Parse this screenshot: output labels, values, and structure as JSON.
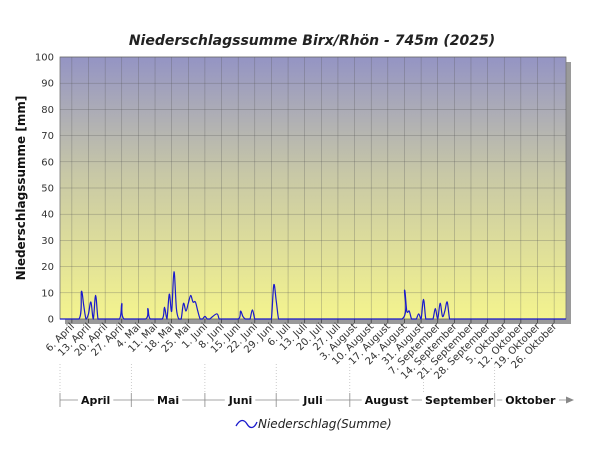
{
  "chart_data": {
    "type": "line",
    "title": "Niederschlagssumme Birx/Rhön - 745m (2025)",
    "ylabel": "Niederschlagssumme [mm]",
    "xlabel": "",
    "ylim": [
      0,
      100
    ],
    "yticks": [
      "0",
      "10",
      "20",
      "30",
      "40",
      "50",
      "60",
      "70",
      "80",
      "90",
      "100"
    ],
    "grid": true,
    "legend_position": "bottom",
    "x_start": "2025-04-01",
    "x_end": "2025-10-31",
    "x_tick_dates": [
      "2025-04-06",
      "2025-04-13",
      "2025-04-20",
      "2025-04-27",
      "2025-05-04",
      "2025-05-11",
      "2025-05-18",
      "2025-05-25",
      "2025-06-01",
      "2025-06-08",
      "2025-06-15",
      "2025-06-22",
      "2025-06-29",
      "2025-07-06",
      "2025-07-13",
      "2025-07-20",
      "2025-07-27",
      "2025-08-03",
      "2025-08-10",
      "2025-08-17",
      "2025-08-24",
      "2025-08-31",
      "2025-09-07",
      "2025-09-14",
      "2025-09-21",
      "2025-09-28",
      "2025-10-05",
      "2025-10-12",
      "2025-10-19",
      "2025-10-26"
    ],
    "x_tick_labels": [
      "6. April",
      "13. April",
      "20. April",
      "27. April",
      "4. Mai",
      "11. Mai",
      "18. Mai",
      "25. Mai",
      "1. Juni",
      "8. Juni",
      "15. Juni",
      "22. Juni",
      "29. Juni",
      "6. Juli",
      "13. Juli",
      "20. Juli",
      "27. Juli",
      "3. August",
      "10. August",
      "17. August",
      "24. August",
      "31. August",
      "7. September",
      "14. September",
      "21. September",
      "28. September",
      "5. Oktober",
      "12. Oktober",
      "19. Oktober",
      "26. Oktober"
    ],
    "months": [
      {
        "label": "April",
        "start": "2025-04-01",
        "end": "2025-04-30"
      },
      {
        "label": "Mai",
        "start": "2025-05-01",
        "end": "2025-05-31"
      },
      {
        "label": "Juni",
        "start": "2025-06-01",
        "end": "2025-06-30"
      },
      {
        "label": "Juli",
        "start": "2025-07-01",
        "end": "2025-07-31"
      },
      {
        "label": "August",
        "start": "2025-08-01",
        "end": "2025-08-31"
      },
      {
        "label": "September",
        "start": "2025-09-01",
        "end": "2025-09-30"
      },
      {
        "label": "Oktober",
        "start": "2025-10-01",
        "end": "2025-10-31"
      }
    ],
    "series": [
      {
        "name": "Niederschlag(Summe)",
        "color": "#1a1acc",
        "x": [
          "2025-04-01",
          "2025-04-09",
          "2025-04-10",
          "2025-04-11",
          "2025-04-12",
          "2025-04-13",
          "2025-04-14",
          "2025-04-15",
          "2025-04-16",
          "2025-04-17",
          "2025-04-18",
          "2025-04-19",
          "2025-04-20",
          "2025-04-21",
          "2025-04-26",
          "2025-04-27",
          "2025-04-28",
          "2025-05-07",
          "2025-05-08",
          "2025-05-09",
          "2025-05-14",
          "2025-05-15",
          "2025-05-16",
          "2025-05-17",
          "2025-05-18",
          "2025-05-19",
          "2025-05-20",
          "2025-05-21",
          "2025-05-22",
          "2025-05-23",
          "2025-05-24",
          "2025-05-25",
          "2025-05-26",
          "2025-05-27",
          "2025-05-28",
          "2025-05-29",
          "2025-05-30",
          "2025-05-31",
          "2025-06-01",
          "2025-06-02",
          "2025-06-03",
          "2025-06-06",
          "2025-06-07",
          "2025-06-08",
          "2025-06-15",
          "2025-06-16",
          "2025-06-17",
          "2025-06-18",
          "2025-06-19",
          "2025-06-20",
          "2025-06-21",
          "2025-06-22",
          "2025-06-23",
          "2025-06-24",
          "2025-06-25",
          "2025-06-26",
          "2025-06-27",
          "2025-06-28",
          "2025-06-29",
          "2025-06-30",
          "2025-07-01",
          "2025-07-02",
          "2025-07-03",
          "2025-07-04",
          "2025-07-05",
          "2025-07-06",
          "2025-07-07",
          "2025-07-08",
          "2025-07-09",
          "2025-07-10",
          "2025-07-11",
          "2025-07-12",
          "2025-07-13",
          "2025-07-14",
          "2025-07-15",
          "2025-07-16",
          "2025-07-17",
          "2025-07-18",
          "2025-07-19",
          "2025-07-20",
          "2025-07-21",
          "2025-07-22",
          "2025-07-23",
          "2025-07-24",
          "2025-07-25",
          "2025-07-26",
          "2025-07-27",
          "2025-07-28",
          "2025-07-29",
          "2025-07-30",
          "2025-07-31",
          "2025-08-01",
          "2025-08-02",
          "2025-08-03",
          "2025-08-04",
          "2025-08-05",
          "2025-08-06",
          "2025-08-23",
          "2025-08-24",
          "2025-08-25",
          "2025-08-26",
          "2025-08-27",
          "2025-08-28",
          "2025-08-29",
          "2025-08-30",
          "2025-08-31",
          "2025-09-01",
          "2025-09-02",
          "2025-09-03",
          "2025-09-04",
          "2025-09-05",
          "2025-09-06",
          "2025-09-07",
          "2025-09-08",
          "2025-09-09",
          "2025-09-10",
          "2025-09-11",
          "2025-09-12",
          "2025-09-13",
          "2025-09-14",
          "2025-09-15",
          "2025-09-16",
          "2025-09-17",
          "2025-09-18",
          "2025-09-19",
          "2025-10-31"
        ],
        "values": [
          0,
          0,
          10.5,
          5,
          0,
          2,
          6.5,
          0,
          9,
          0,
          0,
          0,
          0,
          0,
          0,
          6,
          0,
          0,
          4,
          0,
          0,
          4.5,
          0,
          9.5,
          3,
          18,
          4,
          0,
          0,
          6,
          3,
          6,
          9,
          6.5,
          6.5,
          3,
          0,
          0,
          1,
          0,
          0,
          2,
          0,
          0,
          0,
          3,
          1,
          0,
          0,
          0,
          3.5,
          0,
          0,
          0,
          0,
          0,
          0,
          0,
          0,
          13,
          7,
          0,
          0,
          0,
          0,
          0,
          0,
          0,
          0,
          0,
          0,
          0,
          0,
          0,
          0,
          0,
          0,
          0,
          0,
          0,
          0,
          0,
          0,
          0,
          0,
          0,
          0,
          0,
          0,
          0,
          0,
          0,
          0,
          0,
          0,
          0,
          0,
          0,
          11,
          3,
          3,
          0,
          0,
          0,
          2,
          0,
          7.5,
          0,
          0,
          0,
          0,
          4,
          0,
          6,
          1,
          3,
          6.5,
          0,
          0,
          0,
          0,
          0,
          0,
          0,
          0,
          0
        ]
      }
    ]
  }
}
